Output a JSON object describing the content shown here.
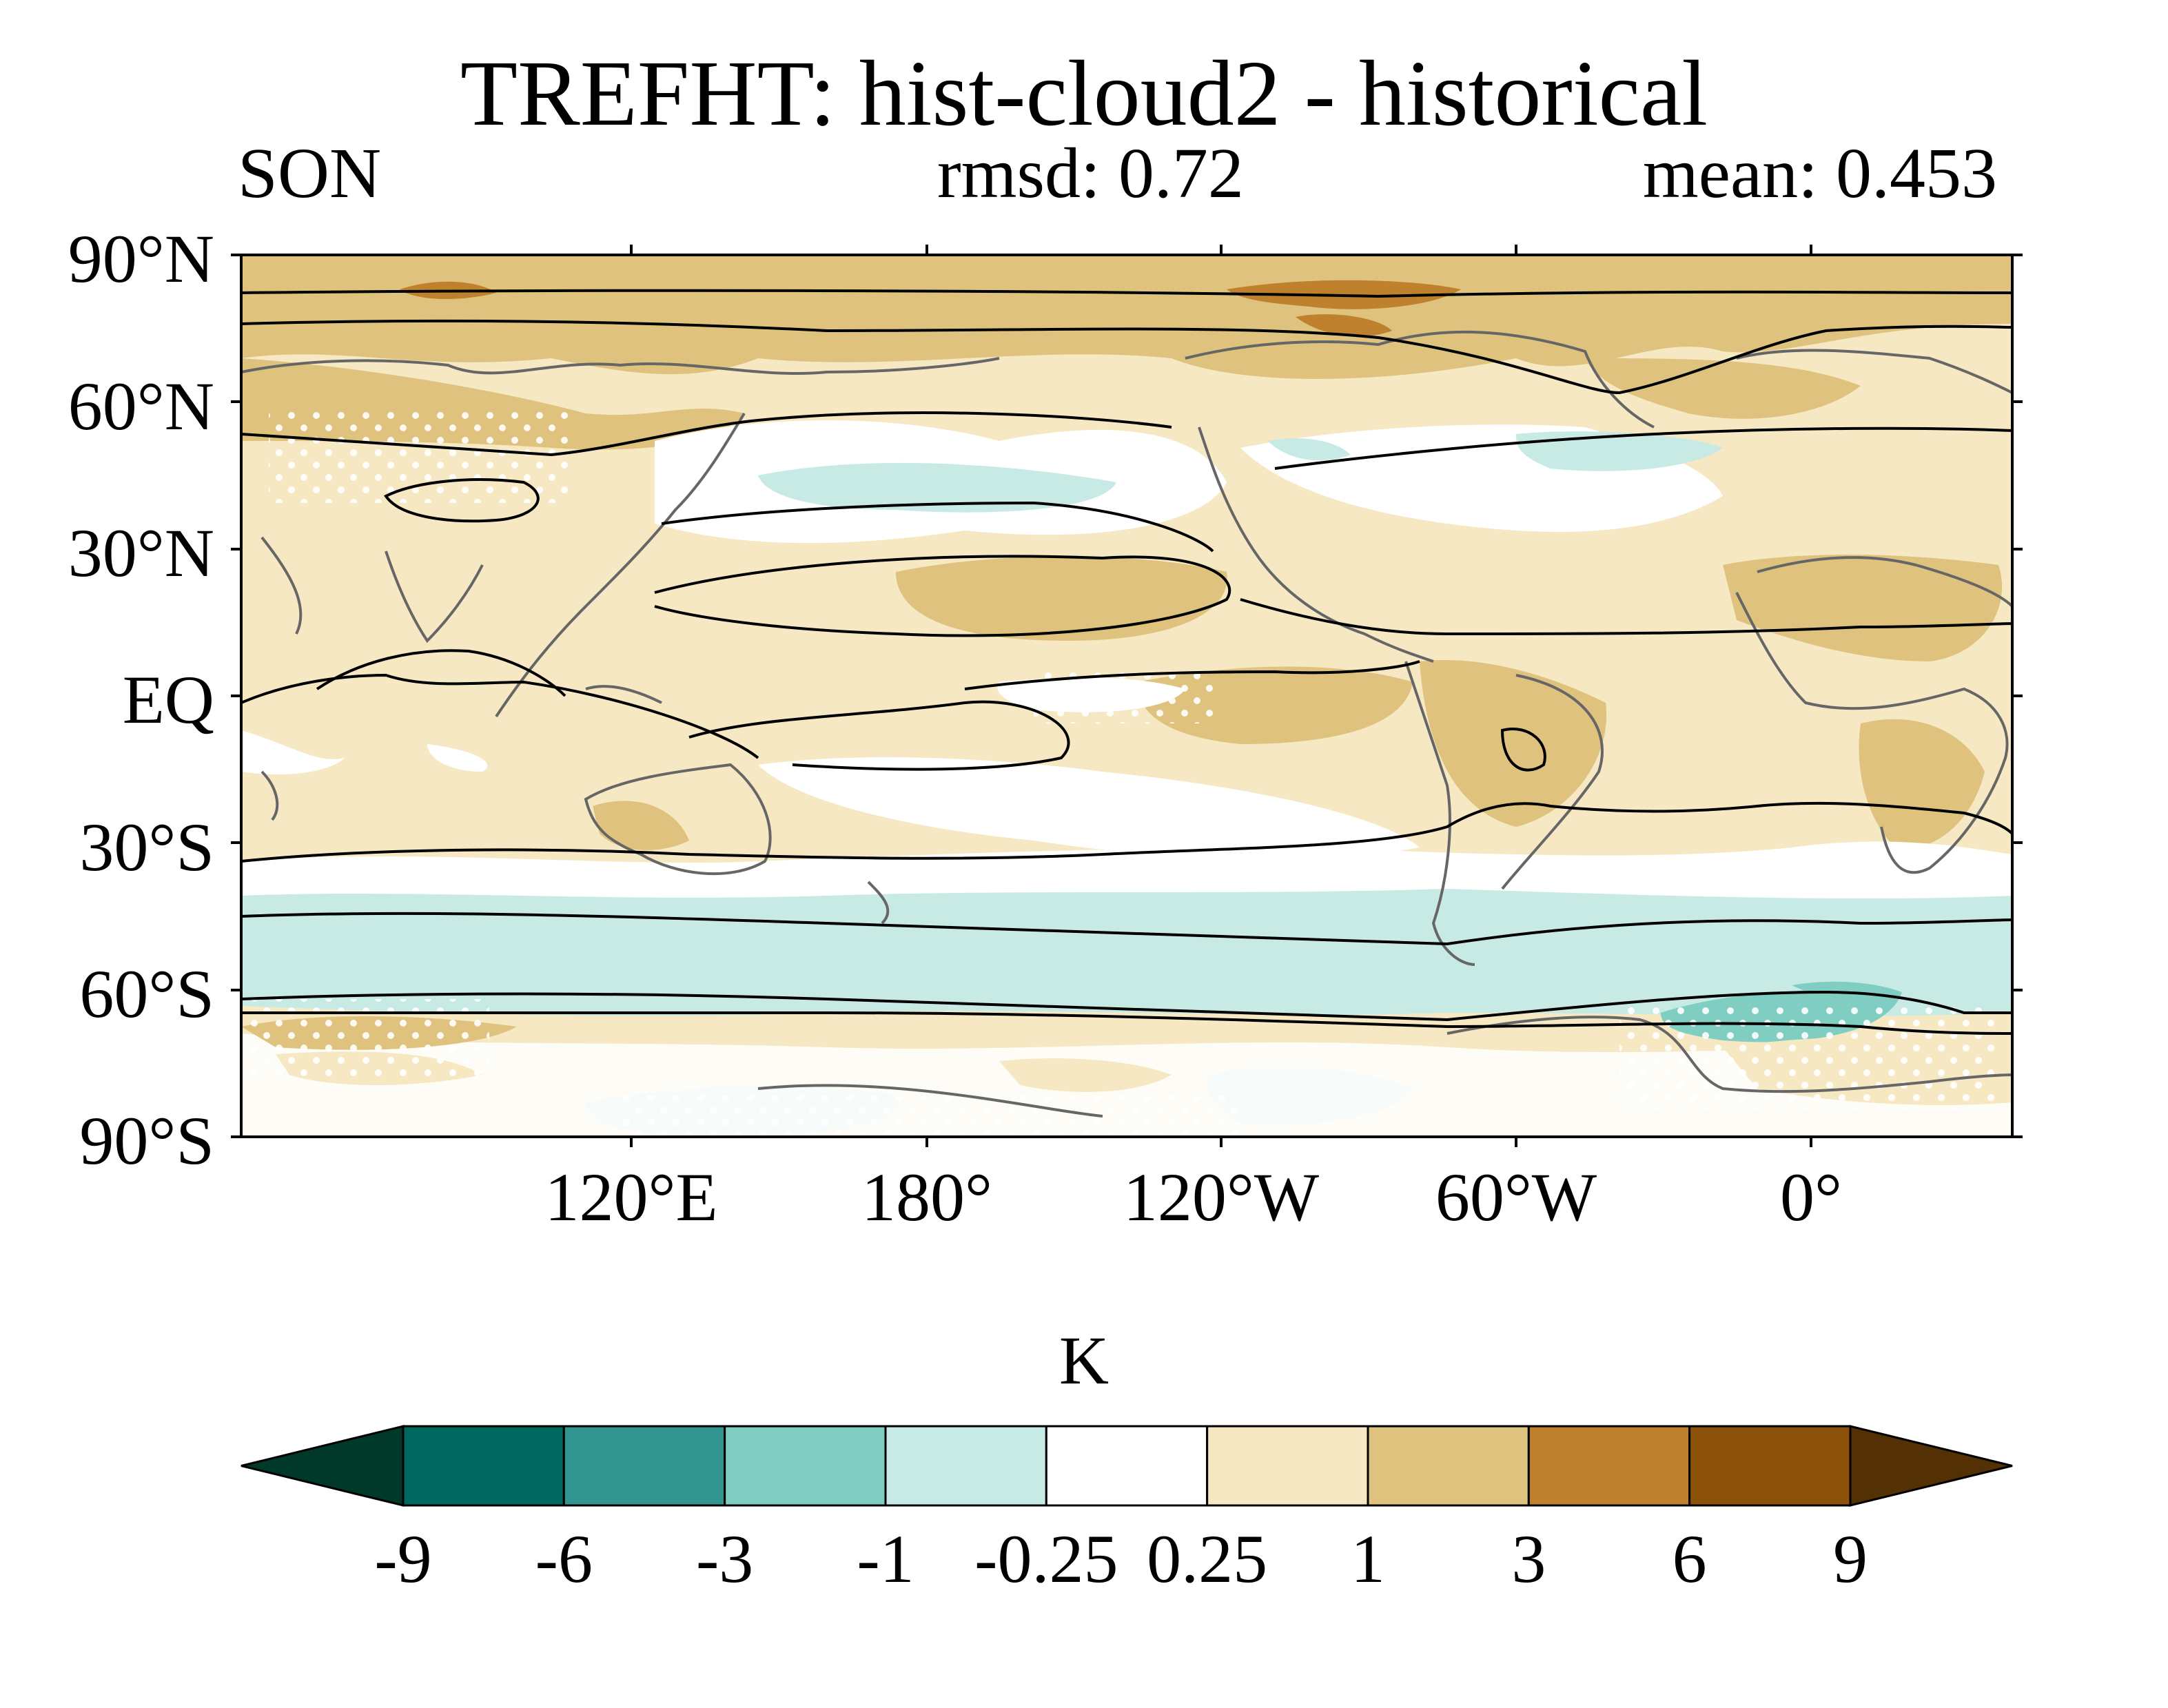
{
  "header": {
    "title": "TREFHT: hist-cloud2 - historical",
    "season": "SON",
    "rmsd": "rmsd: 0.72",
    "mean": "mean: 0.453"
  },
  "axes": {
    "lat_labels": [
      "90°N",
      "60°N",
      "30°N",
      "EQ",
      "30°S",
      "60°S",
      "90°S"
    ],
    "lon_labels": [
      "120°E",
      "180°",
      "120°W",
      "60°W",
      "0°"
    ]
  },
  "colorbar": {
    "unit": "K",
    "ticks": [
      "-9",
      "-6",
      "-3",
      "-1",
      "-0.25",
      "0.25",
      "1",
      "3",
      "6",
      "9"
    ],
    "colors": [
      "#00382a",
      "#00685f",
      "#339590",
      "#80cdc1",
      "#c7eae5",
      "#ffffff",
      "#f6e8c3",
      "#dfc27d",
      "#bf812d",
      "#8c510a",
      "#543005"
    ]
  },
  "map_colors": {
    "land_outline": "#666666",
    "contour": "#000000",
    "stipple": "#ffffff"
  }
}
